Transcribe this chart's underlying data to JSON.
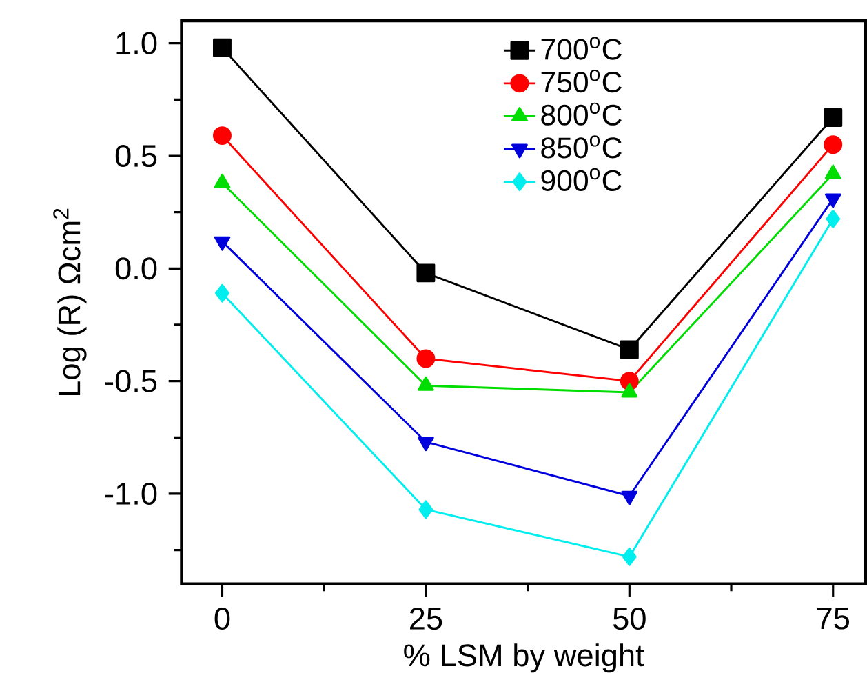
{
  "chart_data": {
    "type": "line",
    "xlabel": "% LSM by weight",
    "ylabel": "Log (R) Ωcm$^{2}$",
    "x": [
      0,
      25,
      50,
      75
    ],
    "xlim": [
      -5,
      79
    ],
    "ylim": [
      -1.4,
      1.1
    ],
    "xticks": [
      0,
      {
        "value": 12.5,
        "label": null
      },
      25,
      {
        "value": 37.5,
        "label": null
      },
      50,
      {
        "value": 62.5,
        "label": null
      },
      75
    ],
    "yticks": [
      {
        "value": -1.25,
        "label": null
      },
      {
        "value": -1.0,
        "label": "-1.0"
      },
      {
        "value": -0.75,
        "label": null
      },
      {
        "value": -0.5,
        "label": "-0.5"
      },
      {
        "value": -0.25,
        "label": null
      },
      {
        "value": 0.0,
        "label": "0.0"
      },
      {
        "value": 0.25,
        "label": null
      },
      {
        "value": 0.5,
        "label": "0.5"
      },
      {
        "value": 0.75,
        "label": null
      },
      {
        "value": 1.0,
        "label": "1.0"
      }
    ],
    "grid": false,
    "legend": "top",
    "line_style": "solid",
    "series": [
      {
        "name": "700$^{o}$C",
        "color": "#000000",
        "marker": "square",
        "values": [
          0.98,
          -0.02,
          -0.36,
          0.67
        ]
      },
      {
        "name": "750$^{o}$C",
        "color": "#ff0000",
        "marker": "circle",
        "values": [
          0.59,
          -0.4,
          -0.5,
          0.55
        ]
      },
      {
        "name": "800$^{o}$C",
        "color": "#00dd00",
        "marker": "triangle",
        "values": [
          0.38,
          -0.52,
          -0.55,
          0.42
        ]
      },
      {
        "name": "850$^{o}$C",
        "color": "#0000dd",
        "marker": "triangle-down",
        "values": [
          0.12,
          -0.77,
          -1.01,
          0.31
        ]
      },
      {
        "name": "900$^{o}$C",
        "color": "#00eeee",
        "marker": "diamond",
        "values": [
          -0.11,
          -1.07,
          -1.28,
          0.22
        ]
      }
    ]
  }
}
